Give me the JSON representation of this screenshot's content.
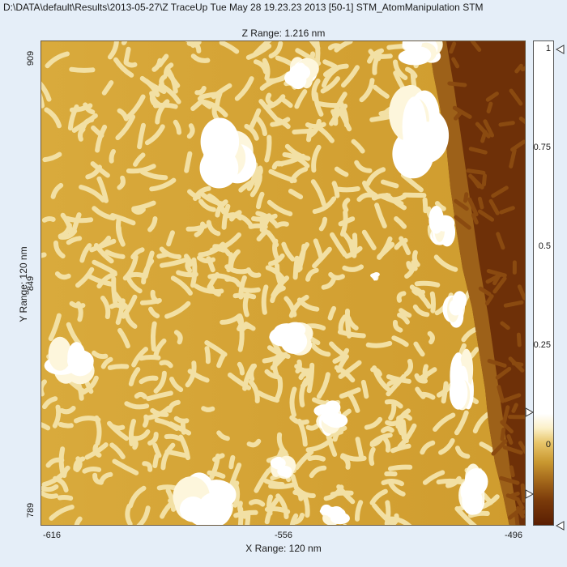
{
  "header": {
    "title": "D:\\DATA\\default\\Results\\2013-05-27\\Z TraceUp Tue May 28 19.23.23 2013 [50-1]  STM_AtomManipulation STM"
  },
  "plot": {
    "z_range_label": "Z Range:  1.216 nm",
    "x_range_label": "X Range: 120 nm",
    "y_range_label": "Y Range: 120 nm",
    "x_ticks": [
      "-616",
      "-556",
      "-496"
    ],
    "y_ticks": [
      "909",
      "849",
      "789"
    ]
  },
  "colorbar": {
    "ticks": [
      "1",
      "0.75",
      "0.5",
      "0.25",
      "0"
    ],
    "colors": [
      "#5a1e02",
      "#a2661a",
      "#d4a740",
      "#e8c56a",
      "#fff6d8",
      "#ffffff"
    ]
  },
  "image": {
    "description_colors": {
      "base": "#d9a93a",
      "stripe": "#f3e2a6",
      "island": "#ffffff",
      "step_low": "#6b2d05"
    }
  }
}
